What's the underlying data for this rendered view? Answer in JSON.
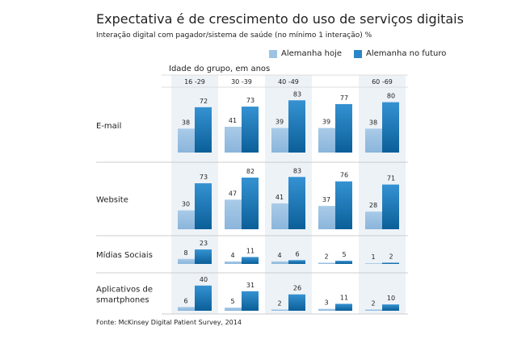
{
  "title": "Expectativa é de crescimento do uso de serviços digitais",
  "subtitle": "Interação digital com pagador/sistema de saúde (no mínimo 1 interação) %",
  "source": "Fonte: McKinsey Digital Patient Survey, 2014",
  "chart_data": {
    "type": "bar",
    "title": "Expectativa é de crescimento do uso de serviços digitais",
    "group_label": "Idade do grupo, em anos",
    "age_groups": [
      "16 -29",
      "30 -39",
      "40 -49",
      "",
      "60 -69"
    ],
    "legend_position": "top-right",
    "series": [
      {
        "name": "Alemanha hoje",
        "color": "#9cc3e4"
      },
      {
        "name": "Alemanha no futuro",
        "color": "#2a86c8"
      }
    ],
    "rows": [
      {
        "label": "E-mail",
        "hoje": [
          38,
          41,
          39,
          39,
          38
        ],
        "futuro": [
          72,
          73,
          83,
          77,
          80
        ]
      },
      {
        "label": "Website",
        "hoje": [
          30,
          47,
          41,
          37,
          28
        ],
        "futuro": [
          73,
          82,
          83,
          76,
          71
        ]
      },
      {
        "label": "Mídias Sociais",
        "hoje": [
          8,
          4,
          4,
          2,
          1
        ],
        "futuro": [
          23,
          11,
          6,
          5,
          2
        ]
      },
      {
        "label": "Aplicativos de smartphones",
        "hoje": [
          6,
          5,
          2,
          3,
          2
        ],
        "futuro": [
          40,
          31,
          26,
          11,
          10
        ]
      }
    ]
  }
}
